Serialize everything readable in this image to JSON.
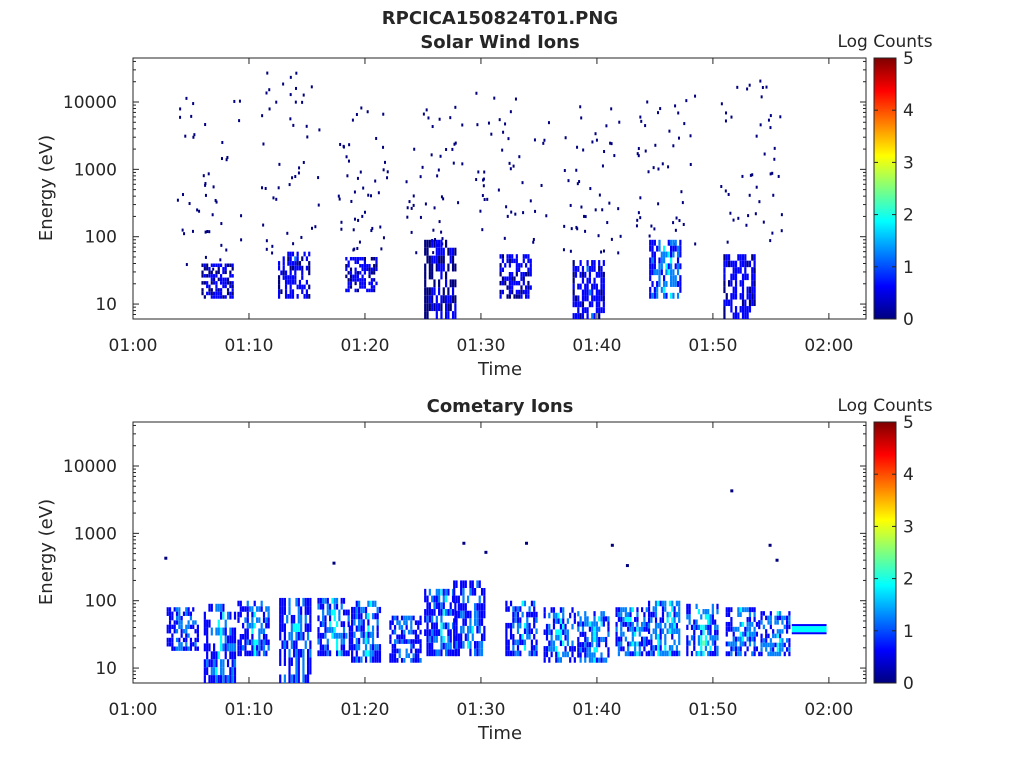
{
  "figure_title": "RPCICA150824T01.PNG",
  "colormap": [
    "#00007f",
    "#0000ff",
    "#007fff",
    "#00ffff",
    "#7fff7f",
    "#ffff00",
    "#ff7f00",
    "#ff0000",
    "#7f0000"
  ],
  "chart_data": [
    {
      "type": "heatmap",
      "title": "Solar Wind Ions",
      "xlabel": "Time",
      "ylabel": "Energy (eV)",
      "xlim": [
        "01:00",
        "02:03"
      ],
      "ylim": [
        6,
        45000
      ],
      "yscale": "log",
      "xticks": [
        "01:00",
        "01:10",
        "01:20",
        "01:30",
        "01:40",
        "01:50",
        "02:00"
      ],
      "yticks": [
        "10",
        "100",
        "1000",
        "10000"
      ],
      "colorbar": {
        "label": "Log Counts",
        "range": [
          0,
          5
        ],
        "ticks": [
          "0",
          "1",
          "2",
          "3",
          "4",
          "5"
        ]
      },
      "bursts": [
        {
          "t": 7.3,
          "e_min": 12,
          "e_max": 40,
          "level": 0.6
        },
        {
          "t": 13.9,
          "e_min": 12,
          "e_max": 60,
          "level": 0.8
        },
        {
          "t": 19.7,
          "e_min": 15,
          "e_max": 50,
          "level": 0.7
        },
        {
          "t": 26.5,
          "e_min": 6,
          "e_max": 90,
          "level": 0.5
        },
        {
          "t": 33.0,
          "e_min": 12,
          "e_max": 55,
          "level": 0.7
        },
        {
          "t": 39.3,
          "e_min": 6,
          "e_max": 45,
          "level": 0.9
        },
        {
          "t": 45.9,
          "e_min": 12,
          "e_max": 90,
          "level": 1.6
        },
        {
          "t": 52.3,
          "e_min": 6,
          "e_max": 55,
          "level": 0.8
        }
      ],
      "scatter_groups": [
        {
          "t_start": 3.5,
          "t_end": 9.5,
          "e_min": 30,
          "e_max": 13000
        },
        {
          "t_start": 11.0,
          "t_end": 16.5,
          "e_min": 60,
          "e_max": 30000
        },
        {
          "t_start": 17.5,
          "t_end": 22.0,
          "e_min": 60,
          "e_max": 9000
        },
        {
          "t_start": 23.5,
          "t_end": 28.5,
          "e_min": 60,
          "e_max": 9000
        },
        {
          "t_start": 29.5,
          "t_end": 36.0,
          "e_min": 60,
          "e_max": 16000
        },
        {
          "t_start": 37.0,
          "t_end": 42.0,
          "e_min": 60,
          "e_max": 9000
        },
        {
          "t_start": 43.0,
          "t_end": 48.5,
          "e_min": 80,
          "e_max": 14000
        },
        {
          "t_start": 50.5,
          "t_end": 56.0,
          "e_min": 80,
          "e_max": 26000
        }
      ]
    },
    {
      "type": "heatmap",
      "title": "Cometary Ions",
      "xlabel": "Time",
      "ylabel": "Energy (eV)",
      "xlim": [
        "01:00",
        "02:03"
      ],
      "ylim": [
        6,
        45000
      ],
      "yscale": "log",
      "xticks": [
        "01:00",
        "01:10",
        "01:20",
        "01:30",
        "01:40",
        "01:50",
        "02:00"
      ],
      "yticks": [
        "10",
        "100",
        "1000",
        "10000"
      ],
      "colorbar": {
        "label": "Log Counts",
        "range": [
          0,
          5
        ],
        "ticks": [
          "0",
          "1",
          "2",
          "3",
          "4",
          "5"
        ]
      },
      "bursts": [
        {
          "t": 4.3,
          "e_min": 18,
          "e_max": 80,
          "level": 1.3
        },
        {
          "t": 7.5,
          "e_min": 6,
          "e_max": 90,
          "level": 1.6
        },
        {
          "t": 10.4,
          "e_min": 15,
          "e_max": 100,
          "level": 1.5
        },
        {
          "t": 14.0,
          "e_min": 6,
          "e_max": 110,
          "level": 1.5
        },
        {
          "t": 17.3,
          "e_min": 15,
          "e_max": 110,
          "level": 1.7
        },
        {
          "t": 20.0,
          "e_min": 12,
          "e_max": 100,
          "level": 1.6
        },
        {
          "t": 23.5,
          "e_min": 12,
          "e_max": 60,
          "level": 1.4
        },
        {
          "t": 26.5,
          "e_min": 15,
          "e_max": 150,
          "level": 1.6
        },
        {
          "t": 29.0,
          "e_min": 15,
          "e_max": 200,
          "level": 1.5
        },
        {
          "t": 33.5,
          "e_min": 15,
          "e_max": 100,
          "level": 1.5
        },
        {
          "t": 36.8,
          "e_min": 12,
          "e_max": 80,
          "level": 1.7
        },
        {
          "t": 39.7,
          "e_min": 12,
          "e_max": 70,
          "level": 1.8
        },
        {
          "t": 43.0,
          "e_min": 15,
          "e_max": 80,
          "level": 1.8
        },
        {
          "t": 45.8,
          "e_min": 15,
          "e_max": 100,
          "level": 1.9
        },
        {
          "t": 49.1,
          "e_min": 15,
          "e_max": 90,
          "level": 1.9
        },
        {
          "t": 52.5,
          "e_min": 15,
          "e_max": 80,
          "level": 1.6
        },
        {
          "t": 55.3,
          "e_min": 15,
          "e_max": 70,
          "level": 1.6
        }
      ],
      "band": {
        "t_start": 56.8,
        "t_end": 59.8,
        "e_min": 34,
        "e_max": 42,
        "level": 1.8
      },
      "points": [
        {
          "t": 2.7,
          "e": 450
        },
        {
          "t": 17.2,
          "e": 380
        },
        {
          "t": 28.4,
          "e": 750
        },
        {
          "t": 30.3,
          "e": 550
        },
        {
          "t": 33.8,
          "e": 750
        },
        {
          "t": 41.2,
          "e": 700
        },
        {
          "t": 42.5,
          "e": 350
        },
        {
          "t": 51.5,
          "e": 4500
        },
        {
          "t": 54.8,
          "e": 700
        },
        {
          "t": 55.4,
          "e": 420
        }
      ]
    }
  ]
}
